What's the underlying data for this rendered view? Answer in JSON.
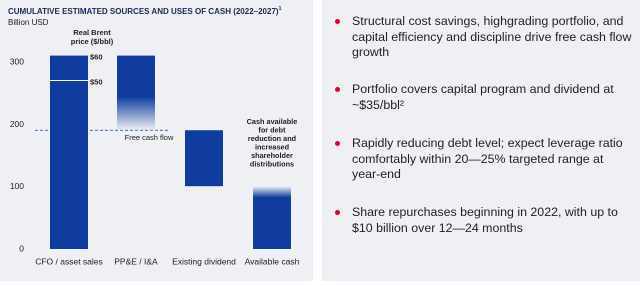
{
  "chart_data": {
    "type": "waterfall",
    "title": "CUMULATIVE ESTIMATED SOURCES AND USES OF CASH (2022–2027)",
    "title_footnote": "1",
    "subtitle": "Billion USD",
    "categories": [
      "CFO / asset sales",
      "PP&E / I&A",
      "Existing dividend",
      "Available cash"
    ],
    "values": [
      311,
      -120,
      -90,
      101
    ],
    "measure": [
      "absolute",
      "relative",
      "relative",
      "total"
    ],
    "fade": [
      "none",
      "down",
      "none",
      "up"
    ],
    "color": "#0f3c9e",
    "ylim": [
      0,
      320
    ],
    "yticks": [
      0,
      100,
      200,
      300
    ],
    "price_title": [
      "Real Brent",
      "price ($/bbl)"
    ],
    "price_markers": [
      {
        "label": "$60",
        "value": 311
      },
      {
        "label": "$50",
        "value": 271
      }
    ],
    "free_cash_flow_label": "Free cash flow",
    "cash_note": [
      "Cash available",
      "for debt",
      "reduction and",
      "increased",
      "shareholder",
      "distributions"
    ]
  },
  "bullets": [
    "Structural cost savings, highgrading portfolio, and capital efficiency and discipline drive free cash flow growth",
    "Portfolio covers capital program and dividend at ~$35/bbl²",
    "Rapidly reducing debt level; expect leverage ratio comfortably within 20—25% targeted range at year-end",
    "Share repurchases beginning in 2022, with up to $10 billion over 12—24 months"
  ]
}
